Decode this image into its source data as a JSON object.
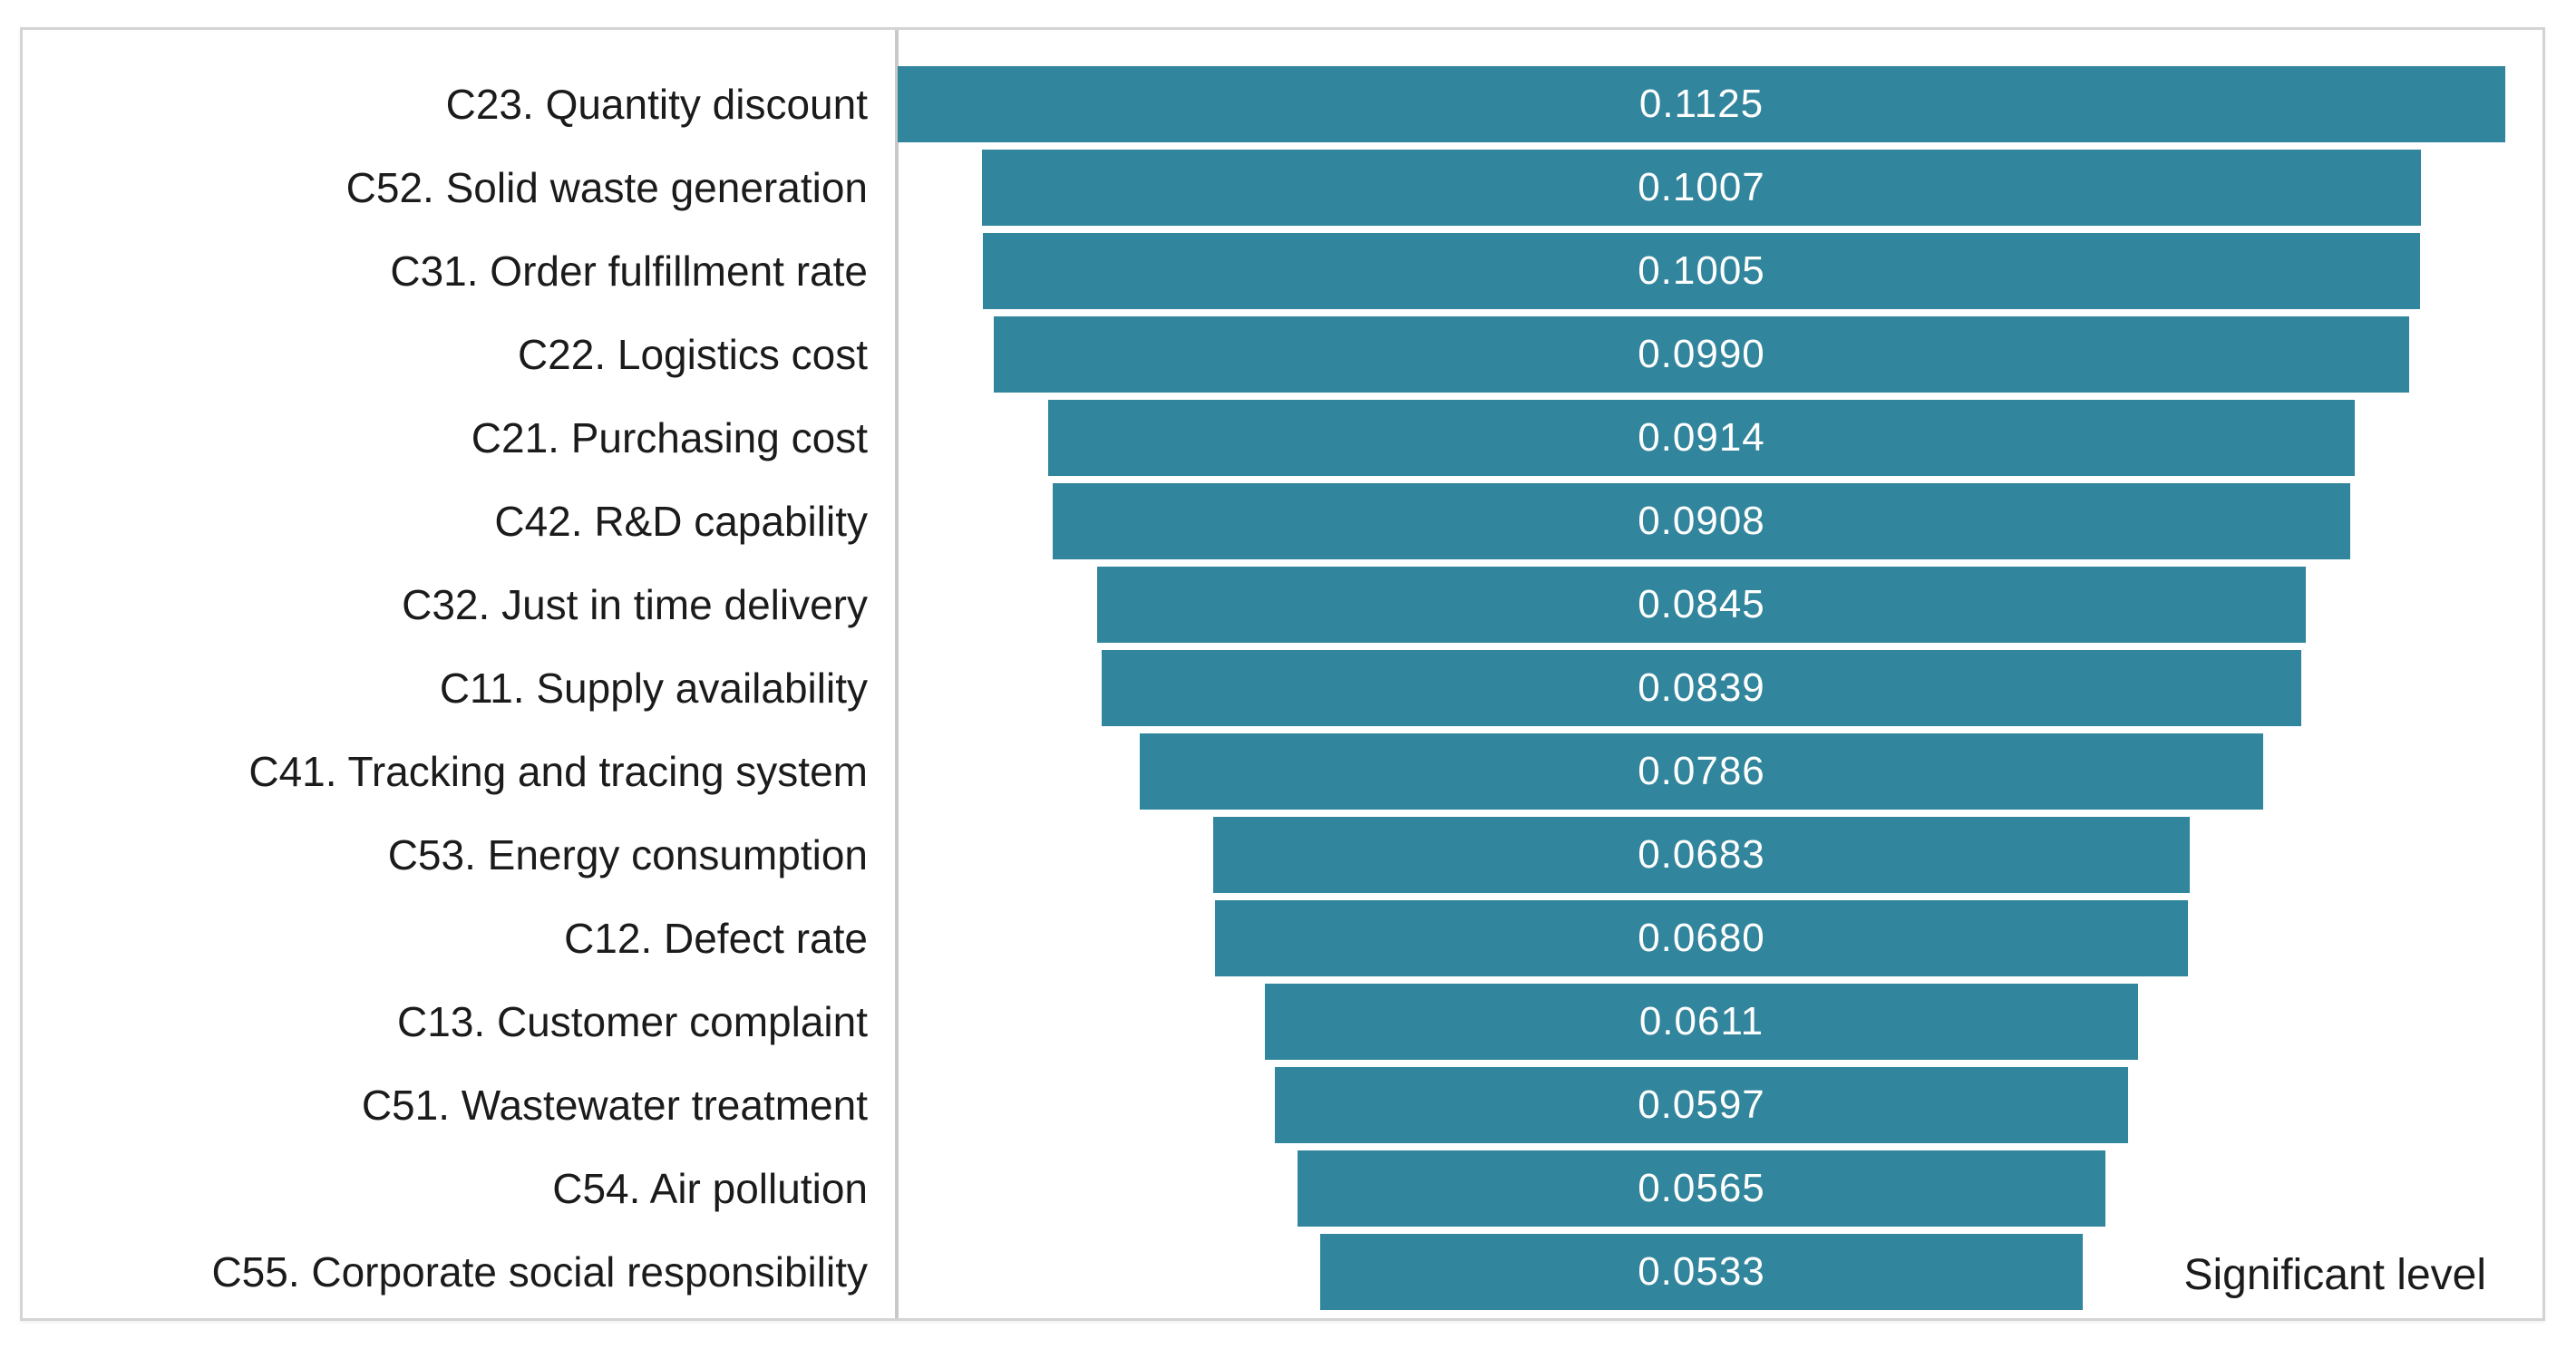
{
  "chart_data": {
    "type": "bar",
    "subtype": "centered-funnel-horizontal",
    "title": "",
    "series_label": "Significant level",
    "categories": [
      "C23. Quantity discount",
      "C52. Solid waste generation",
      "C31. Order fulfillment rate",
      "C22. Logistics cost",
      "C21. Purchasing cost",
      "C42. R&D capability",
      "C32. Just in time delivery",
      "C11. Supply availability",
      "C41. Tracking and tracing system",
      "C53. Energy consumption",
      "C12. Defect rate",
      "C13. Customer complaint",
      "C51. Wastewater treatment",
      "C54. Air pollution",
      "C55. Corporate social responsibility"
    ],
    "values": [
      0.1125,
      0.1007,
      0.1005,
      0.099,
      0.0914,
      0.0908,
      0.0845,
      0.0839,
      0.0786,
      0.0683,
      0.068,
      0.0611,
      0.0597,
      0.0565,
      0.0533
    ],
    "value_labels": [
      "0.1125",
      "0.1007",
      "0.1005",
      "0.0990",
      "0.0914",
      "0.0908",
      "0.0845",
      "0.0839",
      "0.0786",
      "0.0683",
      "0.0680",
      "0.0611",
      "0.0597",
      "0.0565",
      "0.0533"
    ],
    "max_value": 0.1125,
    "bar_color": "#31859C",
    "value_text_color": "#FFFFFF",
    "category_text_color": "#1B1B1B",
    "axis_line_color": "#C9C9C9",
    "frame_border_color": "#D4D4D4",
    "xlabel": "",
    "ylabel": "",
    "grid": false,
    "legend_position": "bottom-right"
  }
}
